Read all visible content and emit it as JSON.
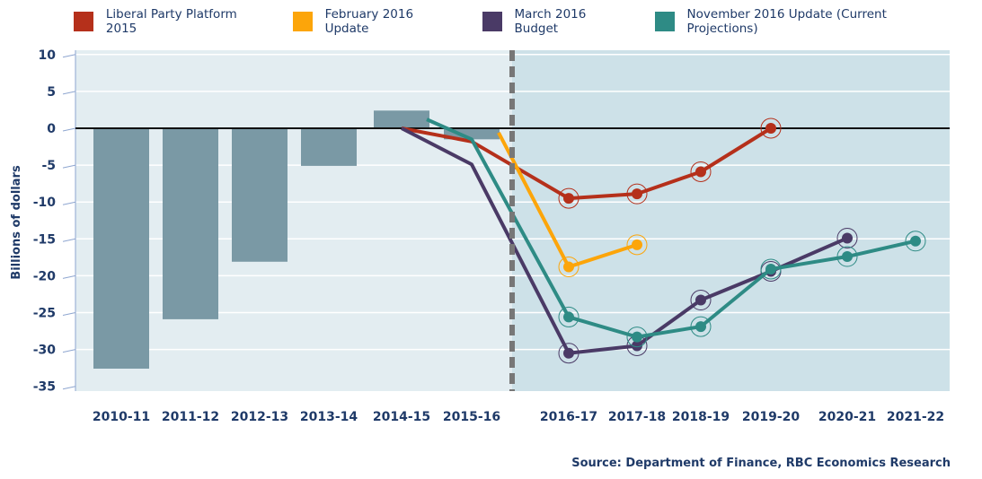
{
  "chart_data": {
    "type": "bar+line",
    "ylabel": "Billions of dollars",
    "ylim": [
      -35,
      10
    ],
    "yticks": [
      10,
      5,
      0,
      -5,
      -10,
      -15,
      -20,
      -25,
      -30,
      -35
    ],
    "grid": true,
    "legend_placement": "top",
    "categories": [
      "2010-11",
      "2011-12",
      "2012-13",
      "2013-14",
      "2014-15",
      "2015-16",
      "2016-17",
      "2017-18",
      "2018-19",
      "2019-20",
      "2020-21",
      "2021-22"
    ],
    "bars": {
      "color": "#7a99a5",
      "values": [
        -32.6,
        -25.9,
        -18.1,
        -5.1,
        2.4,
        -1.5,
        null,
        null,
        null,
        null,
        null,
        null
      ]
    },
    "projection_start": "2016-17",
    "series": [
      {
        "name": "Liberal Party Platform 2015",
        "color": "#b5301b",
        "values": [
          null,
          null,
          null,
          null,
          0,
          -1.8,
          -9.5,
          -8.9,
          -5.9,
          0,
          null,
          null
        ]
      },
      {
        "name": "February 2016 Update",
        "color": "#fca50a",
        "values": [
          null,
          null,
          null,
          null,
          null,
          -0.6,
          -18.8,
          -15.8,
          null,
          null,
          null,
          null
        ]
      },
      {
        "name": "March 2016 Budget",
        "color": "#4a3a66",
        "values": [
          null,
          null,
          null,
          null,
          0,
          -4.9,
          -30.5,
          -29.5,
          -23.3,
          -19.4,
          -14.9,
          null
        ]
      },
      {
        "name": "November 2016 Update (Current Projections)",
        "color": "#2e8b85",
        "values": [
          null,
          null,
          null,
          null,
          1.2,
          -1.5,
          -25.6,
          -28.3,
          -26.9,
          -19.1,
          -17.4,
          -15.3
        ]
      }
    ],
    "source": "Source: Department of Finance, RBC Economics Research"
  }
}
